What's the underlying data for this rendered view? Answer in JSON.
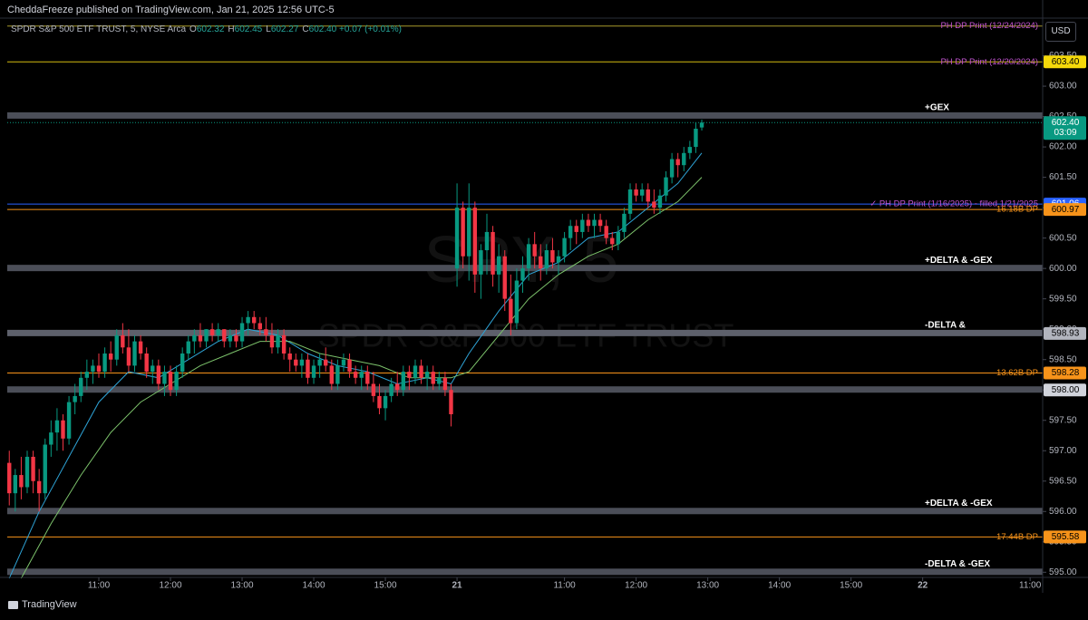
{
  "header": {
    "publisher": "CheddaFreeze published on TradingView.com, Jan 21, 2025 12:56 UTC-5",
    "symbol": "SPDR S&P 500 ETF TRUST, 5, NYSE Arca",
    "ohlc": [
      {
        "key": "O",
        "value": "602.32"
      },
      {
        "key": "H",
        "value": "602.45"
      },
      {
        "key": "L",
        "value": "602.27"
      },
      {
        "key": "C",
        "value": "602.40"
      }
    ],
    "change": "+0.07 (+0.01%)",
    "currency": "USD",
    "watermark_ticker": "SPY, 5",
    "watermark_name": "SPDR S&P 500 ETF TRUST",
    "brand": "TradingView"
  },
  "chart_data": {
    "type": "candlestick",
    "up_color": "#089981",
    "down_color": "#f23645",
    "xlim": [
      2.66,
      176.1
    ],
    "ylim": [
      594.93,
      604.09
    ],
    "xticks": [
      {
        "value": 18,
        "label": "11:00"
      },
      {
        "value": 30,
        "label": "12:00"
      },
      {
        "value": 42,
        "label": "13:00"
      },
      {
        "value": 54,
        "label": "14:00"
      },
      {
        "value": 66,
        "label": "15:00"
      },
      {
        "value": 78,
        "label": "21"
      },
      {
        "value": 96,
        "label": "11:00"
      },
      {
        "value": 108,
        "label": "12:00"
      },
      {
        "value": 120,
        "label": "13:00"
      },
      {
        "value": 132,
        "label": "14:00"
      },
      {
        "value": 144,
        "label": "15:00"
      },
      {
        "value": 156,
        "label": "22"
      },
      {
        "value": 174,
        "label": "11:00"
      }
    ],
    "yticks": [
      {
        "value": 595,
        "label": "595.00"
      },
      {
        "value": 595.5,
        "label": "595.50"
      },
      {
        "value": 596,
        "label": "596.00"
      },
      {
        "value": 596.5,
        "label": "596.50"
      },
      {
        "value": 597,
        "label": "597.00"
      },
      {
        "value": 597.5,
        "label": "597.50"
      },
      {
        "value": 598,
        "label": "598.00"
      },
      {
        "value": 598.5,
        "label": "598.50"
      },
      {
        "value": 599,
        "label": "599.00"
      },
      {
        "value": 599.5,
        "label": "599.50"
      },
      {
        "value": 600,
        "label": "600.00"
      },
      {
        "value": 600.5,
        "label": "600.50"
      },
      {
        "value": 601,
        "label": "601.00"
      },
      {
        "value": 601.5,
        "label": "601.50"
      },
      {
        "value": 602,
        "label": "602.00"
      },
      {
        "value": 602.5,
        "label": "602.50"
      },
      {
        "value": 603,
        "label": "603.00"
      },
      {
        "value": 603.5,
        "label": "603.50"
      }
    ],
    "x": [
      3,
      4,
      5,
      6,
      7,
      8,
      9,
      10,
      11,
      12,
      13,
      14,
      15,
      16,
      17,
      18,
      19,
      20,
      21,
      22,
      23,
      24,
      25,
      26,
      27,
      28,
      29,
      30,
      31,
      32,
      33,
      34,
      35,
      36,
      37,
      38,
      39,
      40,
      41,
      42,
      43,
      44,
      45,
      46,
      47,
      48,
      49,
      50,
      51,
      52,
      53,
      54,
      55,
      56,
      57,
      58,
      59,
      60,
      61,
      62,
      63,
      64,
      65,
      66,
      67,
      68,
      69,
      70,
      71,
      72,
      73,
      74,
      75,
      76,
      77,
      78,
      79,
      80,
      81,
      82,
      83,
      84,
      85,
      86,
      87,
      88,
      89,
      90,
      91,
      92,
      93,
      94,
      95,
      96,
      97,
      98,
      99,
      100,
      101,
      102,
      103,
      104,
      105,
      106,
      107,
      108,
      109,
      110,
      111,
      112,
      113,
      114,
      115,
      116,
      117,
      118,
      119
    ],
    "open": [
      596.8,
      596.3,
      596.6,
      596.4,
      596.9,
      596.5,
      596.3,
      597.1,
      597.3,
      597.5,
      597.2,
      597.8,
      597.9,
      598.2,
      598.3,
      598.4,
      598.3,
      598.6,
      598.5,
      598.9,
      598.7,
      598.4,
      598.8,
      598.6,
      598.3,
      598.4,
      598.1,
      598.3,
      598.0,
      598.3,
      598.6,
      598.8,
      598.9,
      598.8,
      599.0,
      598.9,
      599.0,
      598.8,
      598.9,
      598.8,
      599.1,
      599.2,
      599.1,
      599.0,
      598.9,
      598.7,
      598.9,
      598.6,
      598.5,
      598.4,
      598.5,
      598.2,
      598.4,
      598.5,
      598.4,
      598.1,
      598.4,
      598.5,
      598.3,
      598.2,
      598.3,
      598.1,
      597.9,
      597.7,
      597.9,
      598.1,
      598.0,
      598.3,
      598.2,
      598.4,
      598.2,
      598.3,
      598.1,
      598.2,
      598.0,
      600.0,
      601.0,
      600.2,
      601.0,
      599.9,
      600.3,
      600.6,
      599.9,
      600.2,
      599.5,
      599.1,
      599.8,
      600.0,
      600.4,
      600.2,
      600.0,
      600.3,
      600.1,
      600.2,
      600.5,
      600.7,
      600.6,
      600.8,
      600.7,
      600.8,
      600.7,
      600.5,
      600.4,
      600.6,
      600.9,
      601.3,
      601.2,
      601.3,
      601.1,
      601.0,
      601.2,
      601.5,
      601.8,
      601.7,
      601.9,
      602.0,
      602.32
    ],
    "high": [
      597.0,
      596.7,
      596.9,
      597.0,
      597.0,
      596.7,
      597.2,
      597.5,
      597.7,
      597.6,
      597.9,
      598.1,
      598.3,
      598.5,
      598.5,
      598.6,
      598.7,
      598.8,
      599.0,
      599.1,
      599.0,
      598.9,
      598.9,
      598.7,
      598.5,
      598.5,
      598.4,
      598.4,
      598.4,
      598.7,
      598.9,
      599.0,
      599.1,
      599.0,
      599.1,
      599.1,
      599.0,
      599.0,
      599.0,
      599.2,
      599.3,
      599.3,
      599.2,
      599.2,
      599.1,
      599.0,
      599.0,
      598.7,
      598.6,
      598.6,
      598.6,
      598.5,
      598.6,
      598.7,
      598.5,
      598.5,
      598.6,
      598.6,
      598.4,
      598.4,
      598.4,
      598.3,
      598.1,
      598.0,
      598.2,
      598.3,
      598.4,
      598.4,
      598.5,
      598.5,
      598.4,
      598.4,
      598.3,
      598.3,
      598.1,
      601.4,
      601.1,
      601.4,
      601.1,
      600.4,
      600.9,
      600.7,
      600.4,
      600.3,
      599.9,
      600.0,
      600.2,
      600.5,
      600.6,
      600.4,
      600.4,
      600.5,
      600.3,
      600.6,
      600.8,
      600.8,
      600.9,
      600.9,
      600.9,
      600.9,
      600.8,
      600.6,
      600.7,
      601.0,
      601.4,
      601.4,
      601.4,
      601.4,
      601.3,
      601.3,
      601.6,
      601.9,
      601.9,
      602.0,
      602.1,
      602.4,
      602.45
    ],
    "low": [
      596.1,
      596.0,
      596.2,
      596.3,
      596.3,
      596.0,
      596.2,
      596.9,
      597.0,
      597.0,
      597.1,
      597.6,
      597.8,
      598.0,
      598.1,
      598.2,
      598.2,
      598.3,
      598.4,
      598.6,
      598.3,
      598.3,
      598.5,
      598.2,
      598.1,
      598.0,
      597.9,
      597.9,
      597.9,
      598.2,
      598.5,
      598.6,
      598.7,
      598.7,
      598.8,
      598.8,
      598.7,
      598.7,
      598.7,
      598.7,
      598.9,
      599.0,
      598.9,
      598.8,
      598.6,
      598.6,
      598.5,
      598.3,
      598.3,
      598.2,
      598.1,
      598.1,
      598.2,
      598.3,
      598.0,
      598.0,
      598.3,
      598.2,
      598.1,
      598.0,
      598.0,
      597.8,
      597.6,
      597.5,
      597.8,
      597.9,
      597.9,
      598.0,
      598.1,
      598.1,
      598.0,
      598.0,
      598.0,
      597.9,
      597.4,
      599.7,
      600.0,
      599.8,
      599.6,
      599.5,
      599.9,
      599.7,
      599.6,
      599.3,
      598.9,
      599.0,
      599.6,
      599.8,
      600.0,
      599.8,
      599.9,
      600.0,
      599.9,
      600.1,
      600.3,
      600.4,
      600.5,
      600.6,
      600.5,
      600.6,
      600.4,
      600.3,
      600.3,
      600.5,
      600.8,
      601.1,
      601.1,
      601.0,
      600.9,
      600.9,
      601.1,
      601.4,
      601.5,
      601.6,
      601.8,
      601.9,
      602.27
    ],
    "close": [
      596.3,
      596.6,
      596.4,
      596.9,
      596.5,
      596.3,
      597.1,
      597.3,
      597.5,
      597.2,
      597.8,
      597.9,
      598.2,
      598.3,
      598.4,
      598.3,
      598.6,
      598.5,
      598.9,
      598.7,
      598.4,
      598.8,
      598.6,
      598.3,
      598.4,
      598.1,
      598.3,
      598.0,
      598.3,
      598.6,
      598.8,
      598.9,
      598.8,
      599.0,
      598.9,
      599.0,
      598.8,
      598.9,
      598.8,
      599.1,
      599.2,
      599.1,
      599.0,
      598.9,
      598.7,
      598.9,
      598.6,
      598.5,
      598.4,
      598.5,
      598.2,
      598.4,
      598.5,
      598.4,
      598.1,
      598.4,
      598.5,
      598.3,
      598.2,
      598.3,
      598.1,
      597.9,
      597.7,
      597.9,
      598.1,
      598.0,
      598.3,
      598.2,
      598.4,
      598.2,
      598.3,
      598.1,
      598.2,
      598.0,
      597.6,
      601.0,
      600.2,
      601.0,
      599.9,
      600.3,
      600.6,
      599.9,
      600.2,
      599.5,
      599.1,
      599.8,
      600.0,
      600.4,
      600.2,
      600.0,
      600.3,
      600.1,
      600.2,
      600.5,
      600.7,
      600.6,
      600.8,
      600.7,
      600.8,
      600.7,
      600.5,
      600.4,
      600.6,
      600.9,
      601.3,
      601.2,
      601.3,
      601.1,
      601.0,
      601.2,
      601.5,
      601.8,
      601.7,
      601.9,
      602.0,
      602.3,
      602.4
    ],
    "indicators": [
      {
        "color": "#2ea3d6",
        "x": [
          3,
          8,
          13,
          18,
          23,
          28,
          33,
          38,
          43,
          48,
          53,
          58,
          63,
          68,
          73,
          77,
          80,
          85,
          90,
          95,
          100,
          105,
          110,
          115,
          119
        ],
        "values": [
          594.9,
          596.0,
          596.9,
          597.8,
          598.3,
          598.2,
          598.5,
          598.8,
          599.0,
          598.9,
          598.6,
          598.4,
          598.3,
          598.1,
          598.2,
          598.1,
          598.6,
          599.3,
          599.9,
          600.1,
          600.5,
          600.6,
          601.0,
          601.4,
          601.9
        ]
      },
      {
        "color": "#7cc26b",
        "x": [
          5,
          10,
          15,
          20,
          25,
          30,
          35,
          40,
          45,
          50,
          55,
          60,
          65,
          70,
          75,
          77,
          80,
          85,
          90,
          95,
          100,
          105,
          110,
          115,
          119
        ],
        "values": [
          594.9,
          595.8,
          596.6,
          597.3,
          597.8,
          598.1,
          598.4,
          598.6,
          598.8,
          598.8,
          598.6,
          598.5,
          598.4,
          598.2,
          598.2,
          598.2,
          598.3,
          598.9,
          599.5,
          599.9,
          600.2,
          600.4,
          600.8,
          601.1,
          601.5
        ]
      }
    ],
    "last_price": {
      "label": "602.40",
      "countdown": "03:09",
      "color": "#089981"
    },
    "levels": [
      {
        "name": "PH DP Print (12/24/2024)",
        "value": 603.99,
        "style": "line",
        "color": "#a89a2a",
        "label_color": "#c254d0"
      },
      {
        "name": "PH DP Print (12/20/2024)",
        "value": 603.4,
        "value_label": "603.40",
        "style": "line",
        "color": "#d4bb10",
        "label_color": "#c254d0",
        "box_color": "#f5d90a"
      },
      {
        "name": "+GEX",
        "value": 602.51,
        "style": "band",
        "color": "#4b4e58",
        "label_color": "#ffffff"
      },
      {
        "name": "✓ PH DP Print (1/16/2025) - filled 1/21/2025",
        "value": 601.06,
        "value_label": "601.06",
        "style": "line",
        "color": "#2962ff",
        "label_color": "#c254d0",
        "box_color": "#2962ff"
      },
      {
        "name": "16.18B DP",
        "value": 600.97,
        "value_label": "600.97",
        "style": "line",
        "color": "#f7931a",
        "label_color": "#f7931a",
        "box_color": "#f7931a"
      },
      {
        "name": "+DELTA & -GEX",
        "value": 600.0,
        "style": "band",
        "color": "#4b4e58",
        "label_color": "#ffffff"
      },
      {
        "name": "-DELTA &",
        "value": 598.93,
        "value_label": "598.93",
        "style": "band",
        "color": "#5d606b",
        "label_color": "#ffffff",
        "box_color": "#b2b5be"
      },
      {
        "name": "13.62B DP",
        "value": 598.28,
        "value_label": "598.28",
        "style": "line",
        "color": "#f7931a",
        "label_color": "#f7931a",
        "box_color": "#f7931a"
      },
      {
        "value": 598.0,
        "value_label": "598.00",
        "style": "band",
        "color": "#4b4e58",
        "box_color": "#d1d4dc"
      },
      {
        "name": "+DELTA & -GEX",
        "value": 596.0,
        "style": "band",
        "color": "#4b4e58",
        "label_color": "#ffffff"
      },
      {
        "name": "17.44B DP",
        "value": 595.58,
        "value_label": "595.58",
        "style": "line",
        "color": "#f7931a",
        "label_color": "#f7931a",
        "box_color": "#f7931a"
      },
      {
        "name": "-DELTA & -GEX",
        "value": 595.0,
        "style": "band",
        "color": "#4b4e58",
        "label_color": "#ffffff"
      }
    ]
  }
}
